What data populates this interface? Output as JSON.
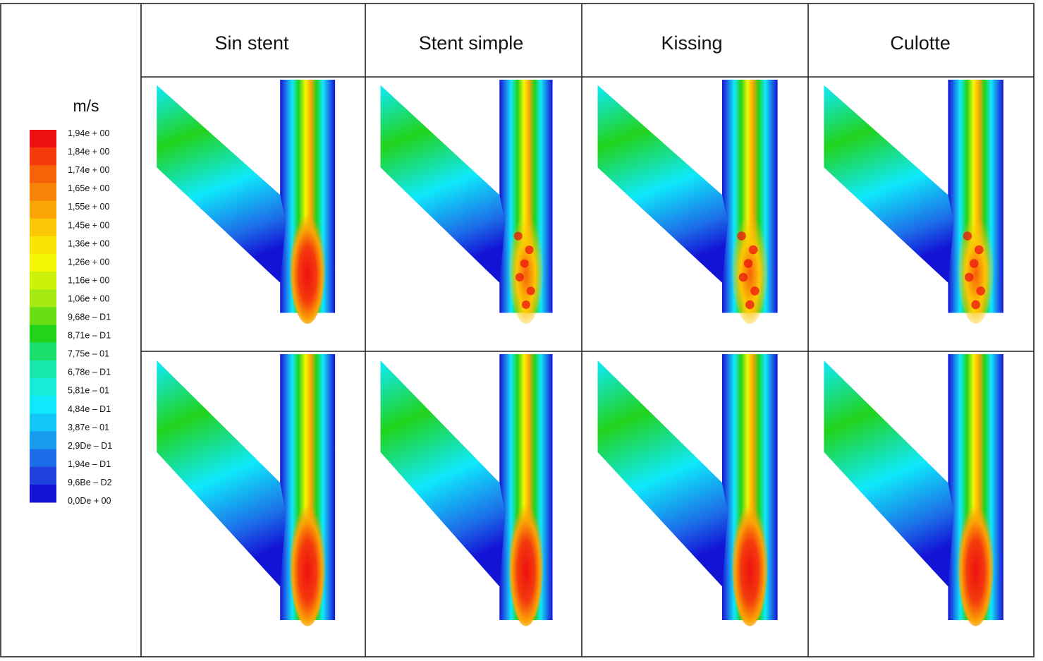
{
  "figure": {
    "columns": [
      "Sin stent",
      "Stent simple",
      "Kissing",
      "Culotte"
    ],
    "legend": {
      "unit": "m/s",
      "labels": [
        "1,94e + 00",
        "1,84e + 00",
        "1,74e + 00",
        "1,65e + 00",
        "1,55e + 00",
        "1,45e + 00",
        "1,36e + 00",
        "1,26e + 00",
        "1,16e + 00",
        "1,06e + 00",
        "9,68e – D1",
        "8,71e – D1",
        "7,75e – 01",
        "6,78e – D1",
        "5,81e – 01",
        "4,84e – D1",
        "3,87e – 01",
        "2,9De – D1",
        "1,94e – D1",
        "9,6Be – D2",
        "0,0De + 00"
      ],
      "colors": [
        "#ee1111",
        "#f43a0c",
        "#f76108",
        "#f98306",
        "#fba405",
        "#fcc705",
        "#fbe304",
        "#f4f702",
        "#cdf10a",
        "#a4e912",
        "#6ade15",
        "#22d31c",
        "#1adf6c",
        "#18e7ab",
        "#15edd9",
        "#0fe9fb",
        "#13c8f8",
        "#179cf0",
        "#1c6ee8",
        "#1f42df",
        "#1313d6"
      ]
    },
    "rows": [
      {
        "name": "top",
        "panels": [
          {
            "column": "Sin stent",
            "profile": "smooth"
          },
          {
            "column": "Stent simple",
            "profile": "turbulent"
          },
          {
            "column": "Kissing",
            "profile": "turbulent"
          },
          {
            "column": "Culotte",
            "profile": "turbulent"
          }
        ]
      },
      {
        "name": "bottom",
        "panels": [
          {
            "column": "Sin stent",
            "profile": "smooth"
          },
          {
            "column": "Stent simple",
            "profile": "smooth"
          },
          {
            "column": "Kissing",
            "profile": "smooth"
          },
          {
            "column": "Culotte",
            "profile": "smooth"
          }
        ]
      }
    ]
  }
}
